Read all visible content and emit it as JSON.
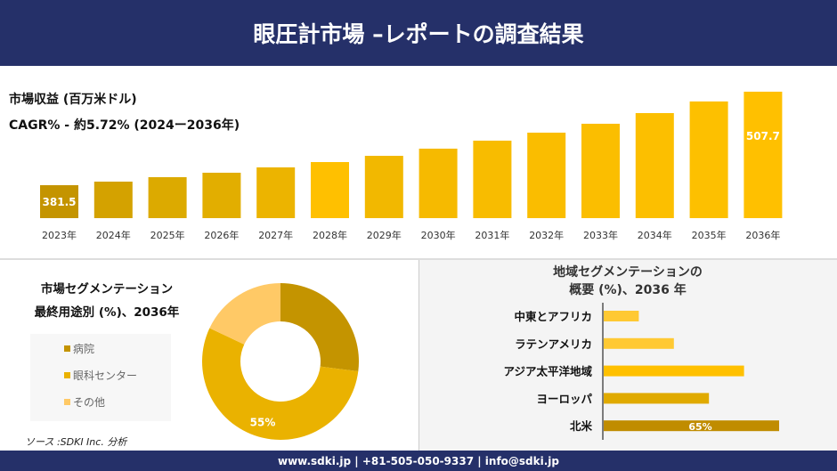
{
  "header": {
    "title": "眼圧計市場 –レポートの調査結果"
  },
  "colors": {
    "header_bg": "#253069",
    "gold_dark": "#c49400",
    "gold": "#e8b000",
    "gold_bright": "#ffc000",
    "gold_light": "#ffc966"
  },
  "chart_data": [
    {
      "type": "bar",
      "title": "市場収益 (百万米ドル)",
      "subtitle": "CAGR% - 約5.72% (2024ー2036年)",
      "categories": [
        "2023年",
        "2024年",
        "2025年",
        "2026年",
        "2027年",
        "2028年",
        "2029年",
        "2030年",
        "2031年",
        "2032年",
        "2033年",
        "2034年",
        "2035年",
        "2036年"
      ],
      "values": [
        381.5,
        386.3,
        392.3,
        398.3,
        405.5,
        412.7,
        421.1,
        430.8,
        441.6,
        452.4,
        464.4,
        478.8,
        494.5,
        507.7
      ],
      "data_labels": {
        "0": "381.5",
        "13": "507.7"
      }
    },
    {
      "type": "pie",
      "title": "市場セグメンテーション",
      "subtitle": "最終用途別 (%)、2036年",
      "categories": [
        "病院",
        "眼科センター",
        "その他"
      ],
      "values": [
        27,
        55,
        18
      ],
      "data_labels": {
        "1": "55%"
      },
      "colors": [
        "#c49400",
        "#eab200",
        "#ffc966"
      ],
      "legend": "left"
    },
    {
      "type": "bar",
      "orientation": "horizontal",
      "title": "地域セグメンテーションの",
      "subtitle": "概要 (%)、2036 年",
      "categories": [
        "中東とアフリカ",
        "ラテンアメリカ",
        "アジア太平洋地域",
        "ヨーロッパ",
        "北米"
      ],
      "values": [
        13,
        26,
        52,
        39,
        65
      ],
      "data_labels": {
        "4": "65%"
      },
      "colors": [
        "#ffc933",
        "#ffc933",
        "#ffc000",
        "#e0aa00",
        "#c08c00"
      ]
    }
  ],
  "source": "ソース :SDKI Inc. 分析",
  "footer": "www.sdki.jp | +81-505-050-9337 | info@sdki.jp"
}
